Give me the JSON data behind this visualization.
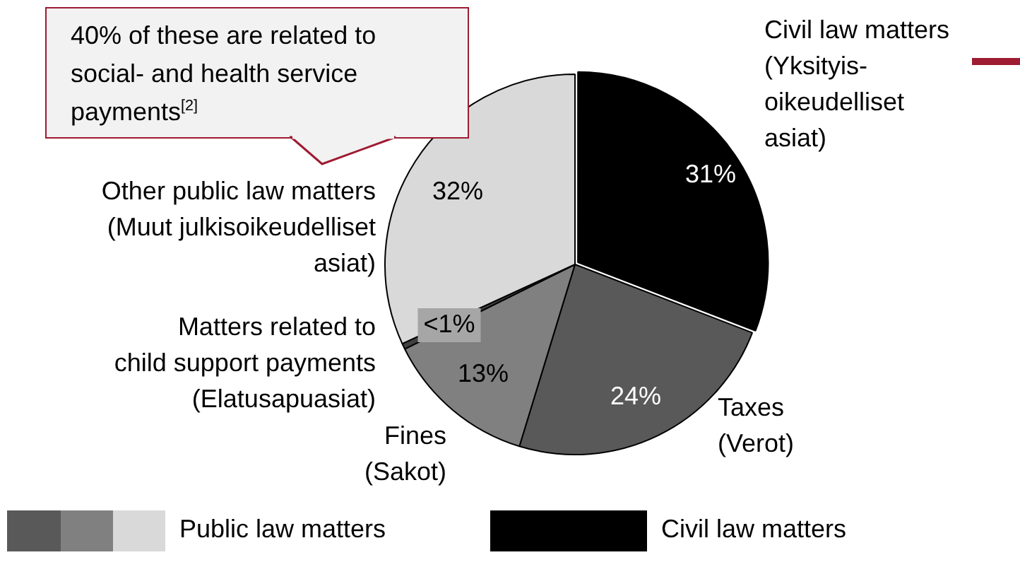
{
  "chart_data": {
    "type": "pie",
    "categories": [
      "Civil law matters\n(Yksityis-\noikeudelliset\nasiat)",
      "Taxes\n(Verot)",
      "Fines\n(Sakot)",
      "Matters related to\nchild support payments\n(Elatusapuasiat)",
      "Other public law matters\n(Muut julkisoikeudelliset\nasiat)"
    ],
    "values": [
      31,
      24,
      13,
      0.5,
      32
    ],
    "value_labels": [
      "31%",
      "24%",
      "13%",
      "<1%",
      "32%"
    ],
    "colors": [
      "#000000",
      "#595959",
      "#808080",
      "#404040",
      "#d9d9d9"
    ],
    "annotations": [
      "40% of these are related to social- and health service payments$^{[2]}$",
      "Public law matters",
      "Civil law matters"
    ]
  }
}
